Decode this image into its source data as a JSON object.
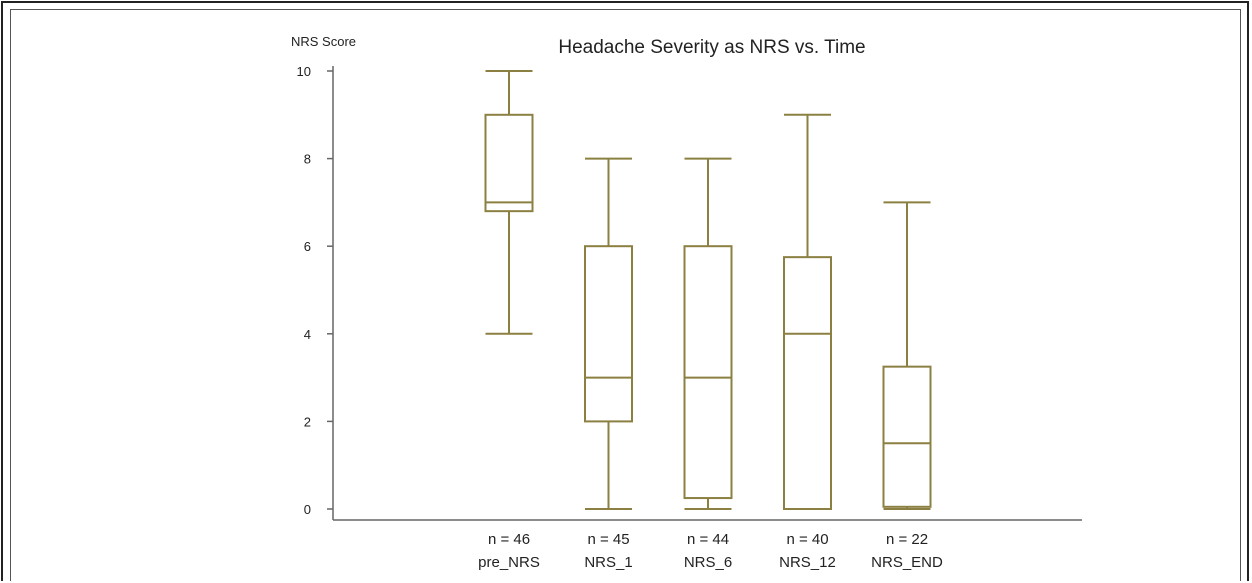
{
  "chart_data": {
    "type": "box",
    "title": "Headache Severity as NRS vs. Time",
    "ylabel": "NRS Score",
    "xlabel": "",
    "ylim": [
      0,
      10
    ],
    "yticks": [
      0,
      2,
      4,
      6,
      8,
      10
    ],
    "grid": false,
    "box_color": "#8B8042",
    "categories": [
      "pre_NRS",
      "NRS_1",
      "NRS_6",
      "NRS_12",
      "NRS_END"
    ],
    "n_labels": [
      "n = 46",
      "n = 45",
      "n = 44",
      "n = 40",
      "n = 22"
    ],
    "boxes": [
      {
        "label": "pre_NRS",
        "min": 4,
        "q1": 6.8,
        "median": 7,
        "q3": 9,
        "max": 10
      },
      {
        "label": "NRS_1",
        "min": 0,
        "q1": 2,
        "median": 3,
        "q3": 6,
        "max": 8
      },
      {
        "label": "NRS_6",
        "min": 0,
        "q1": 0.25,
        "median": 3,
        "q3": 6,
        "max": 8
      },
      {
        "label": "NRS_12",
        "min": 0,
        "q1": 0,
        "median": 4,
        "q3": 5.75,
        "max": 9
      },
      {
        "label": "NRS_END",
        "min": 0,
        "q1": 0.05,
        "median": 1.5,
        "q3": 3.25,
        "max": 7
      }
    ]
  }
}
